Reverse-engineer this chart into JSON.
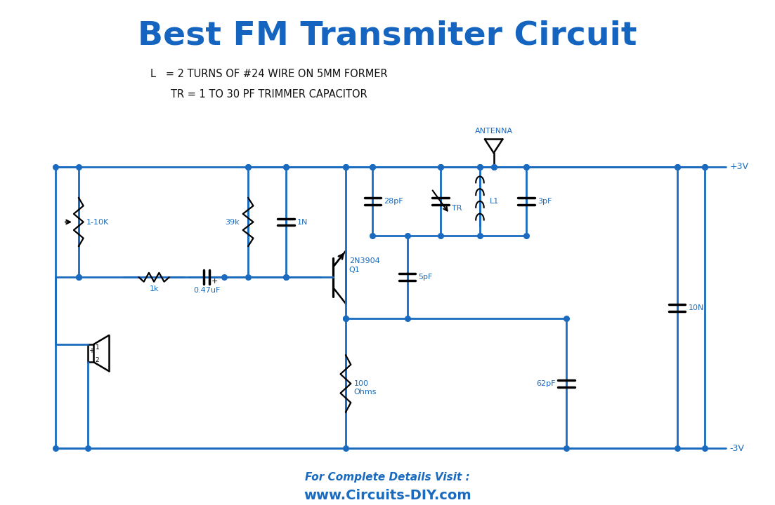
{
  "title": "Best FM Transmiter Circuit",
  "title_color": "#1565c0",
  "wire_color": "#1a6bbf",
  "label_color": "#1a6bbf",
  "bg_color": "#ffffff",
  "note_line1": "L   = 2 TURNS OF #24 WIRE ON 5MM FORMER",
  "note_line2": "TR = 1 TO 30 PF TRIMMER CAPACITOR",
  "footer1": "For Complete Details Visit :",
  "footer2": "www.Circuits-DIY.com",
  "vplus": "+3V",
  "vminus": "-3V",
  "antenna_label": "ANTENNA",
  "pot_label": "1-10K",
  "r1k_label": "1k",
  "cap047_label": "0.47uF",
  "r39k_label": "39k",
  "cap1n_label": "1N",
  "cap28pf_label": "28pF",
  "tr_label": "TR",
  "l1_label": "L1",
  "cap3pf_label": "3pF",
  "q1_label1": "Q1",
  "q1_label2": "2N3904",
  "cap5pf_label": "5pF",
  "r100_label1": "100",
  "r100_label2": "Ohms",
  "cap62pf_label": "62pF",
  "cap10n_label": "10N"
}
